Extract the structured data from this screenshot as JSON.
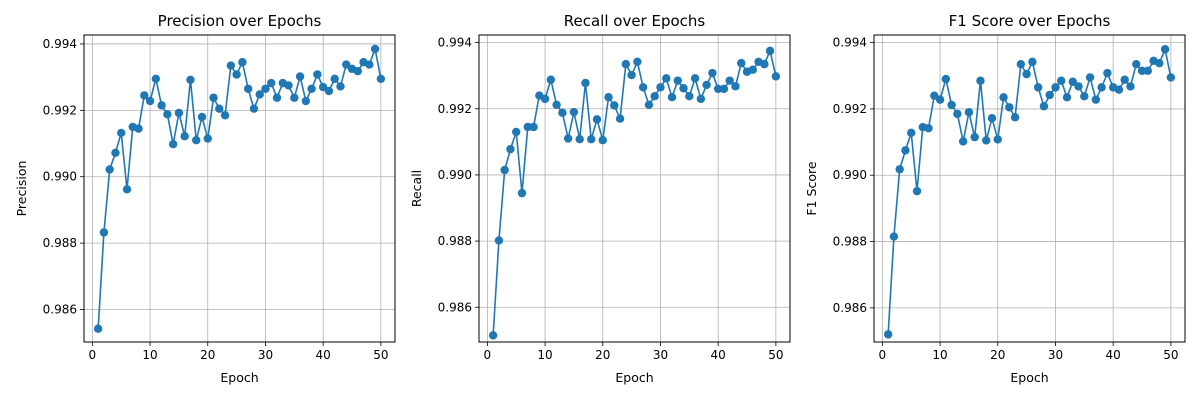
{
  "chart_data": [
    {
      "type": "line",
      "title": "Precision over Epochs",
      "xlabel": "Epoch",
      "ylabel": "Precision",
      "xlim": [
        -1.45,
        52.45
      ],
      "ylim": [
        0.98502,
        0.99427
      ],
      "xticks": [
        0,
        10,
        20,
        30,
        40,
        50
      ],
      "yticks": [
        0.986,
        0.988,
        0.99,
        0.992,
        0.994
      ],
      "ytick_labels": [
        "0.986",
        "0.988",
        "0.990",
        "0.992",
        "0.994"
      ],
      "grid": true,
      "marker": "circle",
      "color": "#1f77b4",
      "x": [
        1,
        2,
        3,
        4,
        5,
        6,
        7,
        8,
        9,
        10,
        11,
        12,
        13,
        14,
        15,
        16,
        17,
        18,
        19,
        20,
        21,
        22,
        23,
        24,
        25,
        26,
        27,
        28,
        29,
        30,
        31,
        32,
        33,
        34,
        35,
        36,
        37,
        38,
        39,
        40,
        41,
        42,
        43,
        44,
        45,
        46,
        47,
        48,
        49,
        50
      ],
      "values": [
        0.98542,
        0.98832,
        0.99022,
        0.99072,
        0.99132,
        0.98962,
        0.9915,
        0.99145,
        0.99245,
        0.99228,
        0.99295,
        0.99215,
        0.99188,
        0.99098,
        0.99192,
        0.99122,
        0.99292,
        0.9911,
        0.9918,
        0.99115,
        0.99238,
        0.99205,
        0.99185,
        0.99335,
        0.99308,
        0.99345,
        0.99265,
        0.99205,
        0.99248,
        0.99265,
        0.99282,
        0.99238,
        0.99282,
        0.99275,
        0.99238,
        0.99302,
        0.99228,
        0.99265,
        0.99308,
        0.9927,
        0.99258,
        0.99295,
        0.99272,
        0.99338,
        0.99325,
        0.99318,
        0.99345,
        0.99338,
        0.99385,
        0.99295
      ]
    },
    {
      "type": "line",
      "title": "Recall over Epochs",
      "xlabel": "Epoch",
      "ylabel": "Recall",
      "xlim": [
        -1.45,
        52.45
      ],
      "ylim": [
        0.98495,
        0.99423
      ],
      "xticks": [
        0,
        10,
        20,
        30,
        40,
        50
      ],
      "yticks": [
        0.986,
        0.988,
        0.99,
        0.992,
        0.994
      ],
      "ytick_labels": [
        "0.986",
        "0.988",
        "0.990",
        "0.992",
        "0.994"
      ],
      "grid": true,
      "marker": "circle",
      "color": "#1f77b4",
      "x": [
        1,
        2,
        3,
        4,
        5,
        6,
        7,
        8,
        9,
        10,
        11,
        12,
        13,
        14,
        15,
        16,
        17,
        18,
        19,
        20,
        21,
        22,
        23,
        24,
        25,
        26,
        27,
        28,
        29,
        30,
        31,
        32,
        33,
        34,
        35,
        36,
        37,
        38,
        39,
        40,
        41,
        42,
        43,
        44,
        45,
        46,
        47,
        48,
        49,
        50
      ],
      "values": [
        0.98515,
        0.98802,
        0.99015,
        0.99078,
        0.9913,
        0.98945,
        0.99145,
        0.99145,
        0.9924,
        0.9923,
        0.99288,
        0.99212,
        0.99188,
        0.9911,
        0.9919,
        0.99108,
        0.99278,
        0.99108,
        0.99168,
        0.99105,
        0.99235,
        0.9921,
        0.9917,
        0.99335,
        0.99302,
        0.99342,
        0.99265,
        0.99212,
        0.99238,
        0.99265,
        0.99292,
        0.99235,
        0.99285,
        0.99262,
        0.99238,
        0.99292,
        0.9923,
        0.99272,
        0.99308,
        0.9926,
        0.9926,
        0.99285,
        0.99268,
        0.99338,
        0.99312,
        0.99318,
        0.99342,
        0.99335,
        0.99375,
        0.99298
      ]
    },
    {
      "type": "line",
      "title": "F1 Score over Epochs",
      "xlabel": "Epoch",
      "ylabel": "F1 Score",
      "xlim": [
        -1.45,
        52.45
      ],
      "ylim": [
        0.98497,
        0.99423
      ],
      "xticks": [
        0,
        10,
        20,
        30,
        40,
        50
      ],
      "yticks": [
        0.986,
        0.988,
        0.99,
        0.992,
        0.994
      ],
      "ytick_labels": [
        "0.986",
        "0.988",
        "0.990",
        "0.992",
        "0.994"
      ],
      "grid": true,
      "marker": "circle",
      "color": "#1f77b4",
      "x": [
        1,
        2,
        3,
        4,
        5,
        6,
        7,
        8,
        9,
        10,
        11,
        12,
        13,
        14,
        15,
        16,
        17,
        18,
        19,
        20,
        21,
        22,
        23,
        24,
        25,
        26,
        27,
        28,
        29,
        30,
        31,
        32,
        33,
        34,
        35,
        36,
        37,
        38,
        39,
        40,
        41,
        42,
        43,
        44,
        45,
        46,
        47,
        48,
        49,
        50
      ],
      "values": [
        0.9852,
        0.98815,
        0.99018,
        0.99075,
        0.99128,
        0.98952,
        0.99145,
        0.99142,
        0.9924,
        0.99228,
        0.9929,
        0.99212,
        0.99185,
        0.99102,
        0.9919,
        0.99115,
        0.99285,
        0.99105,
        0.99172,
        0.99108,
        0.99235,
        0.99205,
        0.99175,
        0.99335,
        0.99305,
        0.99342,
        0.99265,
        0.99208,
        0.99242,
        0.99265,
        0.99285,
        0.99235,
        0.99282,
        0.99268,
        0.99238,
        0.99295,
        0.99228,
        0.99265,
        0.99308,
        0.99265,
        0.99258,
        0.99288,
        0.99268,
        0.99335,
        0.99315,
        0.99315,
        0.99345,
        0.99338,
        0.9938,
        0.99295
      ]
    }
  ]
}
